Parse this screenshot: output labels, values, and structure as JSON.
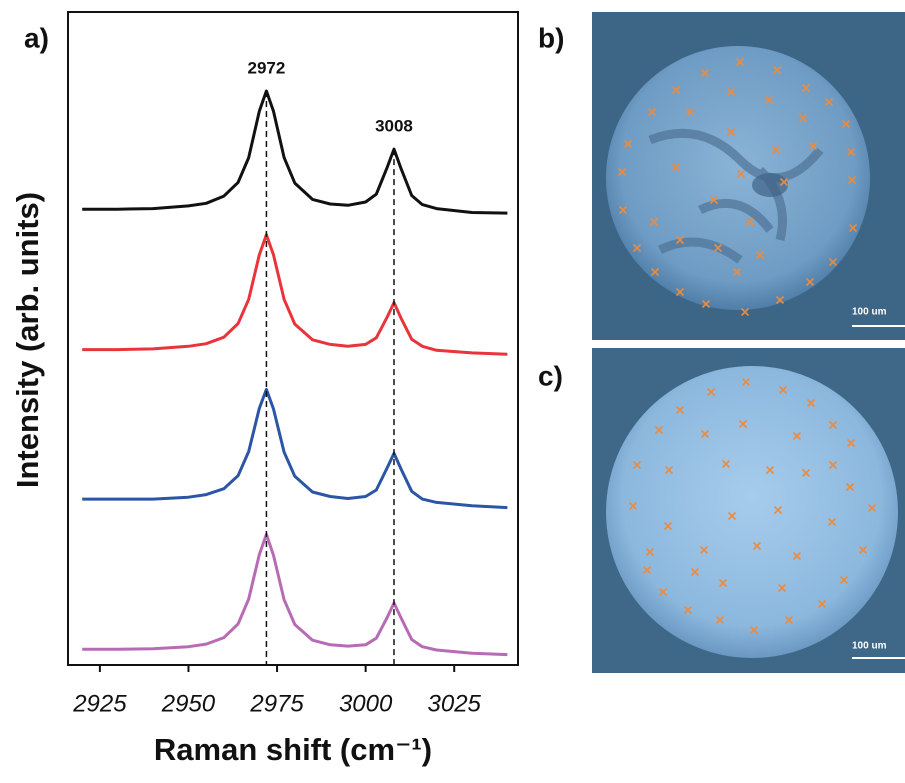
{
  "chart_data": {
    "type": "line",
    "xlabel": "Raman shift (cm⁻¹)",
    "ylabel": "Intensity (arb. units)",
    "xlim": [
      2916,
      3043
    ],
    "xticks": [
      2925,
      2950,
      2975,
      3000,
      3025
    ],
    "ylim": [
      0,
      100
    ],
    "x": [
      2920,
      2930,
      2940,
      2950,
      2955,
      2960,
      2964,
      2967,
      2970,
      2972,
      2974,
      2977,
      2980,
      2985,
      2990,
      2995,
      3000,
      3003,
      3006,
      3008,
      3010,
      3013,
      3016,
      3020,
      3030,
      3040
    ],
    "series": [
      {
        "color": "#111111",
        "values": [
          69.8,
          69.8,
          69.9,
          70.3,
          70.7,
          71.8,
          73.9,
          77.7,
          84.8,
          87.9,
          84.8,
          77.7,
          73.8,
          71.3,
          70.6,
          70.4,
          70.9,
          72.1,
          76.1,
          79.0,
          76.0,
          71.9,
          70.5,
          69.9,
          69.3,
          69.2
        ]
      },
      {
        "color": "#e8343a",
        "values": [
          48.3,
          48.3,
          48.4,
          48.8,
          49.2,
          50.2,
          52.3,
          56.0,
          62.8,
          65.9,
          62.8,
          56.0,
          52.2,
          49.8,
          49.1,
          48.8,
          49.1,
          50.1,
          53.2,
          55.5,
          53.1,
          49.9,
          48.8,
          48.2,
          47.8,
          47.6
        ]
      },
      {
        "color": "#2b55a5",
        "values": [
          25.4,
          25.4,
          25.4,
          25.7,
          26.1,
          27.0,
          29.0,
          32.7,
          39.3,
          42.2,
          39.2,
          32.6,
          28.9,
          26.5,
          25.8,
          25.5,
          25.8,
          26.8,
          30.1,
          32.4,
          30.0,
          26.6,
          25.4,
          24.9,
          24.4,
          24.1
        ]
      },
      {
        "color": "#b86bb5",
        "values": [
          2.4,
          2.4,
          2.5,
          2.8,
          3.2,
          4.2,
          6.3,
          10.1,
          16.9,
          20.0,
          16.8,
          10.0,
          6.2,
          3.8,
          3.1,
          2.9,
          3.1,
          4.1,
          7.2,
          9.5,
          7.2,
          3.9,
          2.8,
          2.3,
          1.8,
          1.6
        ]
      }
    ],
    "annotations": [
      {
        "x": 2972,
        "label": "2972"
      },
      {
        "x": 3008,
        "label": "3008"
      }
    ]
  },
  "panels": [
    {
      "label": "a)"
    },
    {
      "label": "b)",
      "scale_bar": "100 um"
    },
    {
      "label": "c)",
      "scale_bar": "100 um"
    }
  ]
}
